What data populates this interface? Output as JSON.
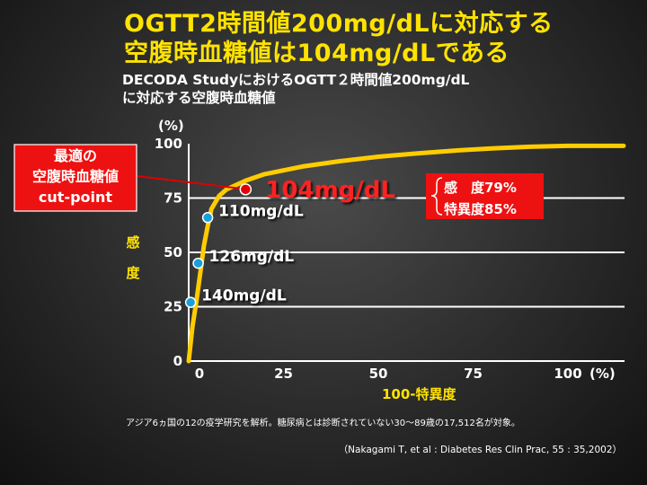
{
  "title_line1": "OGTT2時間値200mg/dLに対応する",
  "title_line2": "空腹時血糖値は104mg/dLである",
  "subtitle_line1": "DECODA StudyにおけるOGTT２時間値200mg/dL",
  "subtitle_line2": "に対応する空腹時血糖値",
  "note": "アジア6ヵ国の12の疫学研究を解析。糖尿病とは診断されていない30～89歳の17,512名が対象。",
  "citation": "（Nakagami T, et al : Diabetes Res Clin Prac, 55 : 35,2002）",
  "callout": {
    "line1": "最適の",
    "line2": "空腹時血糖値",
    "line3": "cut-point"
  },
  "result_box": {
    "line1": "感　度79%",
    "line2": "特異度85%"
  },
  "colors": {
    "curve": "#ffcc00",
    "axis_label": "#ffe300",
    "title": "#ffe300",
    "point_fill": "#1aa0d8",
    "optimal_point": "#e00000",
    "callout_bg": "#ee1111"
  },
  "chart_data": {
    "type": "line",
    "xlabel": "100-特異度",
    "ylabel": "感度",
    "x_unit": "(%)",
    "y_unit": "(%)",
    "xlim": [
      0,
      100
    ],
    "ylim": [
      0,
      100
    ],
    "x_ticks": [
      "0",
      "25",
      "50",
      "75",
      "100"
    ],
    "y_ticks": [
      "0",
      "25",
      "50",
      "75",
      "100"
    ],
    "curve": {
      "x": [
        0,
        1,
        2,
        3,
        4,
        5,
        6,
        8,
        10,
        15,
        20,
        30,
        40,
        50,
        60,
        70,
        80,
        90,
        100
      ],
      "y": [
        0,
        16,
        27,
        40,
        53,
        62,
        70,
        76,
        79,
        83,
        86,
        89.5,
        92,
        94,
        95.5,
        96.8,
        97.8,
        98.6,
        99
      ]
    },
    "points": [
      {
        "label": "140mg/dL",
        "x": 0.5,
        "y": 27,
        "optimal": false
      },
      {
        "label": "126mg/dL",
        "x": 2.5,
        "y": 45,
        "optimal": false
      },
      {
        "label": "110mg/dL",
        "x": 5,
        "y": 66,
        "optimal": false
      },
      {
        "label": "104mg/dL",
        "x": 15,
        "y": 79,
        "optimal": true
      }
    ],
    "gridlines_y": [
      25,
      50,
      75
    ]
  }
}
